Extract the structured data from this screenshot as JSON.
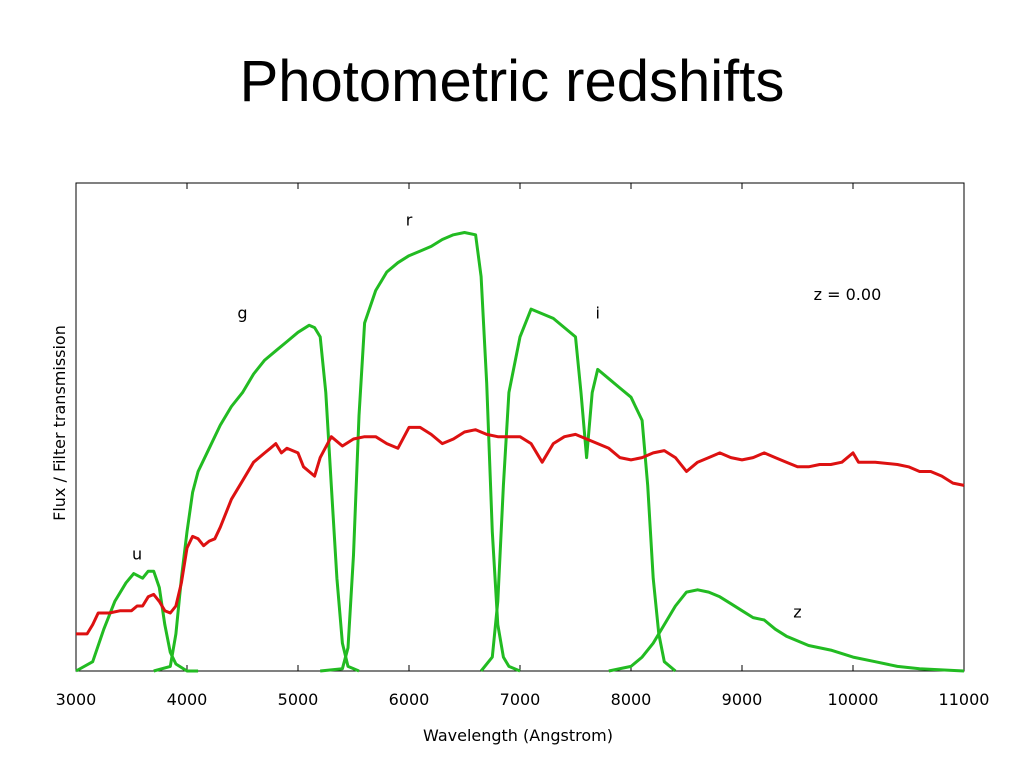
{
  "slide": {
    "title": "Photometric redshifts"
  },
  "chart_data": {
    "type": "line",
    "title": "",
    "xlabel": "Wavelength (Angstrom)",
    "ylabel": "Flux / Filter transmission",
    "xlim": [
      3000,
      11000
    ],
    "ylim": [
      0,
      1.0
    ],
    "xticks": [
      3000,
      4000,
      5000,
      6000,
      7000,
      8000,
      9000,
      10000,
      11000
    ],
    "grid": false,
    "annotation": "z = 0.00",
    "colors": {
      "filter": "#22bb22",
      "spectrum": "#dd1111"
    },
    "series": [
      {
        "name": "u",
        "role": "filter",
        "points": [
          [
            3000,
            0
          ],
          [
            3150,
            0.02
          ],
          [
            3250,
            0.09
          ],
          [
            3350,
            0.15
          ],
          [
            3450,
            0.19
          ],
          [
            3520,
            0.21
          ],
          [
            3600,
            0.2
          ],
          [
            3650,
            0.215
          ],
          [
            3700,
            0.215
          ],
          [
            3750,
            0.18
          ],
          [
            3800,
            0.1
          ],
          [
            3850,
            0.04
          ],
          [
            3900,
            0.015
          ],
          [
            4000,
            0
          ],
          [
            4100,
            0
          ]
        ]
      },
      {
        "name": "g",
        "role": "filter",
        "points": [
          [
            3700,
            0
          ],
          [
            3850,
            0.01
          ],
          [
            3900,
            0.08
          ],
          [
            3950,
            0.2
          ],
          [
            4000,
            0.3
          ],
          [
            4050,
            0.385
          ],
          [
            4100,
            0.43
          ],
          [
            4200,
            0.48
          ],
          [
            4300,
            0.53
          ],
          [
            4400,
            0.57
          ],
          [
            4500,
            0.6
          ],
          [
            4600,
            0.64
          ],
          [
            4700,
            0.67
          ],
          [
            4800,
            0.69
          ],
          [
            4900,
            0.71
          ],
          [
            5000,
            0.73
          ],
          [
            5100,
            0.745
          ],
          [
            5150,
            0.74
          ],
          [
            5200,
            0.72
          ],
          [
            5250,
            0.6
          ],
          [
            5300,
            0.4
          ],
          [
            5350,
            0.2
          ],
          [
            5400,
            0.06
          ],
          [
            5450,
            0.01
          ],
          [
            5550,
            0
          ]
        ]
      },
      {
        "name": "r",
        "role": "filter",
        "points": [
          [
            5200,
            0
          ],
          [
            5400,
            0.005
          ],
          [
            5450,
            0.05
          ],
          [
            5500,
            0.25
          ],
          [
            5550,
            0.55
          ],
          [
            5600,
            0.75
          ],
          [
            5700,
            0.82
          ],
          [
            5800,
            0.86
          ],
          [
            5900,
            0.88
          ],
          [
            6000,
            0.895
          ],
          [
            6100,
            0.905
          ],
          [
            6200,
            0.915
          ],
          [
            6300,
            0.93
          ],
          [
            6400,
            0.94
          ],
          [
            6500,
            0.945
          ],
          [
            6600,
            0.94
          ],
          [
            6650,
            0.85
          ],
          [
            6700,
            0.62
          ],
          [
            6750,
            0.3
          ],
          [
            6800,
            0.1
          ],
          [
            6850,
            0.03
          ],
          [
            6900,
            0.01
          ],
          [
            7000,
            0
          ]
        ]
      },
      {
        "name": "i",
        "role": "filter",
        "points": [
          [
            6650,
            0
          ],
          [
            6750,
            0.03
          ],
          [
            6800,
            0.15
          ],
          [
            6850,
            0.4
          ],
          [
            6900,
            0.6
          ],
          [
            7000,
            0.72
          ],
          [
            7100,
            0.78
          ],
          [
            7200,
            0.77
          ],
          [
            7300,
            0.76
          ],
          [
            7400,
            0.74
          ],
          [
            7500,
            0.72
          ],
          [
            7550,
            0.6
          ],
          [
            7600,
            0.46
          ],
          [
            7650,
            0.6
          ],
          [
            7700,
            0.65
          ],
          [
            7800,
            0.63
          ],
          [
            7900,
            0.61
          ],
          [
            8000,
            0.59
          ],
          [
            8100,
            0.54
          ],
          [
            8150,
            0.4
          ],
          [
            8200,
            0.2
          ],
          [
            8250,
            0.08
          ],
          [
            8300,
            0.02
          ],
          [
            8400,
            0
          ]
        ]
      },
      {
        "name": "z",
        "role": "filter",
        "points": [
          [
            7800,
            0
          ],
          [
            8000,
            0.01
          ],
          [
            8100,
            0.03
          ],
          [
            8200,
            0.06
          ],
          [
            8300,
            0.1
          ],
          [
            8400,
            0.14
          ],
          [
            8500,
            0.17
          ],
          [
            8600,
            0.175
          ],
          [
            8700,
            0.17
          ],
          [
            8800,
            0.16
          ],
          [
            8900,
            0.145
          ],
          [
            9000,
            0.13
          ],
          [
            9100,
            0.115
          ],
          [
            9200,
            0.11
          ],
          [
            9300,
            0.09
          ],
          [
            9400,
            0.075
          ],
          [
            9600,
            0.055
          ],
          [
            9800,
            0.045
          ],
          [
            10000,
            0.03
          ],
          [
            10200,
            0.02
          ],
          [
            10400,
            0.01
          ],
          [
            10600,
            0.005
          ],
          [
            11000,
            0
          ]
        ]
      },
      {
        "name": "spectrum",
        "role": "spectrum",
        "points": [
          [
            3000,
            0.08
          ],
          [
            3100,
            0.08
          ],
          [
            3150,
            0.1
          ],
          [
            3200,
            0.125
          ],
          [
            3300,
            0.125
          ],
          [
            3400,
            0.13
          ],
          [
            3500,
            0.13
          ],
          [
            3550,
            0.14
          ],
          [
            3600,
            0.14
          ],
          [
            3650,
            0.16
          ],
          [
            3700,
            0.165
          ],
          [
            3750,
            0.15
          ],
          [
            3800,
            0.13
          ],
          [
            3850,
            0.125
          ],
          [
            3900,
            0.14
          ],
          [
            3950,
            0.19
          ],
          [
            4000,
            0.265
          ],
          [
            4050,
            0.29
          ],
          [
            4100,
            0.285
          ],
          [
            4150,
            0.27
          ],
          [
            4200,
            0.28
          ],
          [
            4250,
            0.285
          ],
          [
            4300,
            0.31
          ],
          [
            4400,
            0.37
          ],
          [
            4500,
            0.41
          ],
          [
            4600,
            0.45
          ],
          [
            4700,
            0.47
          ],
          [
            4750,
            0.48
          ],
          [
            4800,
            0.49
          ],
          [
            4850,
            0.47
          ],
          [
            4900,
            0.48
          ],
          [
            5000,
            0.47
          ],
          [
            5050,
            0.44
          ],
          [
            5150,
            0.42
          ],
          [
            5200,
            0.46
          ],
          [
            5300,
            0.505
          ],
          [
            5400,
            0.485
          ],
          [
            5500,
            0.5
          ],
          [
            5600,
            0.505
          ],
          [
            5700,
            0.505
          ],
          [
            5800,
            0.49
          ],
          [
            5900,
            0.48
          ],
          [
            6000,
            0.525
          ],
          [
            6100,
            0.525
          ],
          [
            6200,
            0.51
          ],
          [
            6300,
            0.49
          ],
          [
            6400,
            0.5
          ],
          [
            6500,
            0.515
          ],
          [
            6600,
            0.52
          ],
          [
            6700,
            0.51
          ],
          [
            6800,
            0.505
          ],
          [
            6900,
            0.505
          ],
          [
            7000,
            0.505
          ],
          [
            7100,
            0.49
          ],
          [
            7200,
            0.45
          ],
          [
            7300,
            0.49
          ],
          [
            7400,
            0.505
          ],
          [
            7500,
            0.51
          ],
          [
            7600,
            0.5
          ],
          [
            7700,
            0.49
          ],
          [
            7800,
            0.48
          ],
          [
            7900,
            0.46
          ],
          [
            8000,
            0.455
          ],
          [
            8100,
            0.46
          ],
          [
            8200,
            0.47
          ],
          [
            8300,
            0.475
          ],
          [
            8400,
            0.46
          ],
          [
            8500,
            0.43
          ],
          [
            8600,
            0.45
          ],
          [
            8700,
            0.46
          ],
          [
            8800,
            0.47
          ],
          [
            8900,
            0.46
          ],
          [
            9000,
            0.455
          ],
          [
            9100,
            0.46
          ],
          [
            9200,
            0.47
          ],
          [
            9300,
            0.46
          ],
          [
            9400,
            0.45
          ],
          [
            9500,
            0.44
          ],
          [
            9600,
            0.44
          ],
          [
            9700,
            0.445
          ],
          [
            9800,
            0.445
          ],
          [
            9900,
            0.45
          ],
          [
            10000,
            0.47
          ],
          [
            10050,
            0.45
          ],
          [
            10200,
            0.45
          ],
          [
            10400,
            0.445
          ],
          [
            10500,
            0.44
          ],
          [
            10600,
            0.43
          ],
          [
            10700,
            0.43
          ],
          [
            10800,
            0.42
          ],
          [
            10900,
            0.405
          ],
          [
            11000,
            0.4
          ]
        ]
      }
    ],
    "band_labels": [
      {
        "text": "u",
        "x": 3550,
        "y": 0.24
      },
      {
        "text": "g",
        "x": 4500,
        "y": 0.76
      },
      {
        "text": "r",
        "x": 6000,
        "y": 0.96
      },
      {
        "text": "i",
        "x": 7700,
        "y": 0.76
      },
      {
        "text": "z",
        "x": 9500,
        "y": 0.115
      }
    ],
    "annotation_pos": {
      "x": 9950,
      "y": 0.8
    }
  }
}
